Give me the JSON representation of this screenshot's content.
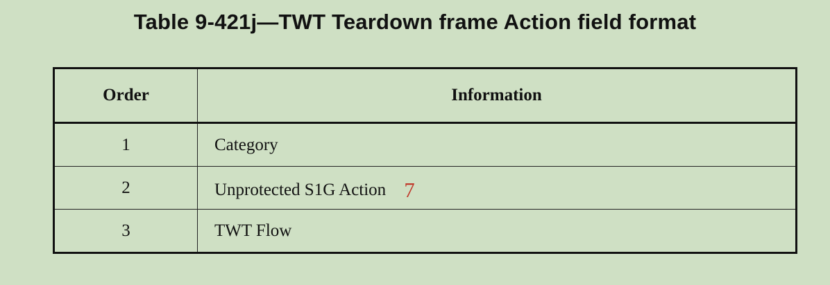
{
  "title": "Table 9-421j—TWT Teardown frame Action field format",
  "table": {
    "headers": [
      "Order",
      "Information"
    ],
    "rows": [
      {
        "order": "1",
        "information": "Category"
      },
      {
        "order": "2",
        "information": "Unprotected S1G Action",
        "annotation": "7"
      },
      {
        "order": "3",
        "information": "TWT Flow"
      }
    ]
  }
}
